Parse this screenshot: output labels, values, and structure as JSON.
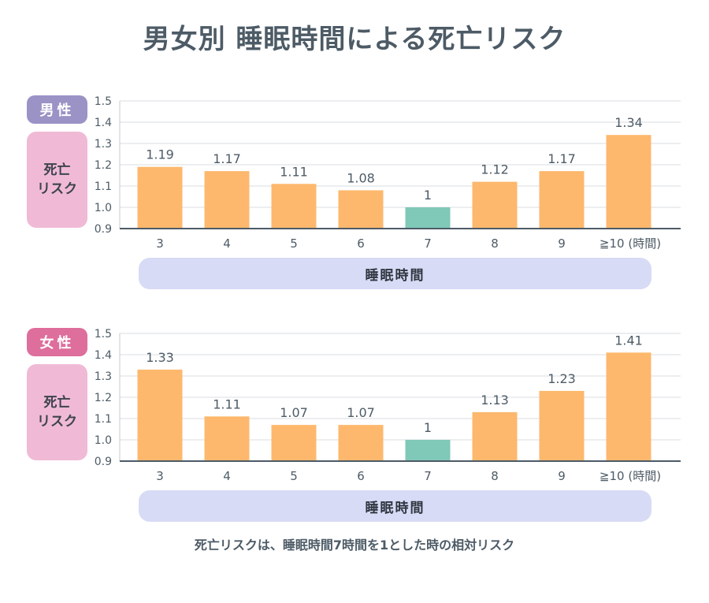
{
  "title": "男女別 睡眠時間による死亡リスク",
  "y_axis_label": [
    "死亡",
    "リスク"
  ],
  "x_axis_label": "睡眠時間",
  "caption": "死亡リスクは、睡眠時間7時間を1とした時の相対リスク",
  "colors": {
    "bar": "#fdb86d",
    "reference_bar": "#80c8b8",
    "male_badge": "#9b92c6",
    "female_badge": "#de6e9c",
    "risk_box": "#f0bad6",
    "axis_box": "#d8dbf5"
  },
  "chart_data": [
    {
      "type": "bar",
      "panel": "男性",
      "categories": [
        "3",
        "4",
        "5",
        "6",
        "7",
        "8",
        "9",
        "≧10 (時間)"
      ],
      "values": [
        1.19,
        1.17,
        1.11,
        1.08,
        1,
        1.12,
        1.17,
        1.34
      ],
      "value_labels": [
        "1.19",
        "1.17",
        "1.11",
        "1.08",
        "1",
        "1.12",
        "1.17",
        "1.34"
      ],
      "reference_category": "7",
      "yticks": [
        "0.9",
        "1.0",
        "1.1",
        "1.2",
        "1.3",
        "1.4",
        "1.5"
      ],
      "ylim": [
        0.9,
        1.5
      ],
      "grid": true
    },
    {
      "type": "bar",
      "panel": "女性",
      "categories": [
        "3",
        "4",
        "5",
        "6",
        "7",
        "8",
        "9",
        "≧10 (時間)"
      ],
      "values": [
        1.33,
        1.11,
        1.07,
        1.07,
        1,
        1.13,
        1.23,
        1.41
      ],
      "value_labels": [
        "1.33",
        "1.11",
        "1.07",
        "1.07",
        "1",
        "1.13",
        "1.23",
        "1.41"
      ],
      "reference_category": "7",
      "yticks": [
        "0.9",
        "1.0",
        "1.1",
        "1.2",
        "1.3",
        "1.4",
        "1.5"
      ],
      "ylim": [
        0.9,
        1.5
      ],
      "grid": true
    }
  ]
}
